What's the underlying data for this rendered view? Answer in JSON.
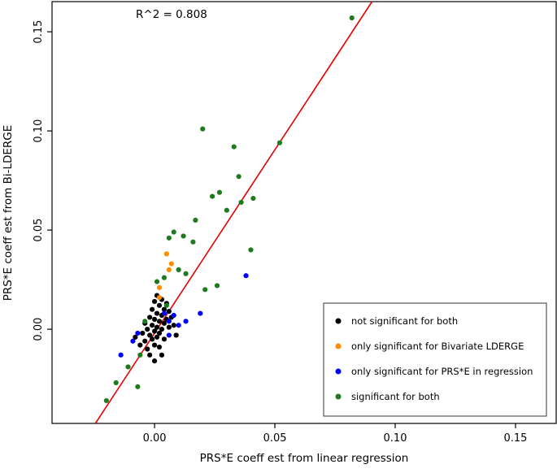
{
  "chart_data": {
    "type": "scatter",
    "title": "",
    "annotation_text": "R^2 = 0.808",
    "xlabel": "PRS*E coeff est from linear regression",
    "ylabel": "PRS*E coeff est from Bi-LDERGE",
    "xlim": [
      -0.0426,
      0.1669
    ],
    "ylim": [
      -0.0475,
      0.1652
    ],
    "xticks": [
      0.0,
      0.05,
      0.1,
      0.15
    ],
    "yticks": [
      0.0,
      0.05,
      0.1,
      0.15
    ],
    "grid": false,
    "legend_position": "bottom-right",
    "regression_line": {
      "slope": 1.85,
      "intercept": -0.002,
      "color": "#e60000"
    },
    "series": [
      {
        "name": "not significant for both",
        "color": "#000000",
        "points": [
          [
            -0.008,
            -0.004
          ],
          [
            -0.006,
            -0.008
          ],
          [
            -0.005,
            -0.002
          ],
          [
            -0.004,
            0.003
          ],
          [
            -0.004,
            -0.006
          ],
          [
            -0.003,
            0.0
          ],
          [
            -0.003,
            -0.01
          ],
          [
            -0.002,
            0.006
          ],
          [
            -0.002,
            -0.003
          ],
          [
            -0.002,
            -0.013
          ],
          [
            -0.001,
            0.01
          ],
          [
            -0.001,
            0.002
          ],
          [
            -0.001,
            -0.005
          ],
          [
            0.0,
            0.014
          ],
          [
            0.0,
            0.005
          ],
          [
            0.0,
            -0.001
          ],
          [
            0.0,
            -0.008
          ],
          [
            0.001,
            0.017
          ],
          [
            0.001,
            0.008
          ],
          [
            0.001,
            0.001
          ],
          [
            0.001,
            -0.004
          ],
          [
            0.002,
            0.012
          ],
          [
            0.002,
            0.004
          ],
          [
            0.002,
            -0.002
          ],
          [
            0.002,
            -0.009
          ],
          [
            0.003,
            0.015
          ],
          [
            0.003,
            0.007
          ],
          [
            0.003,
            0.0
          ],
          [
            0.004,
            0.01
          ],
          [
            0.004,
            0.003
          ],
          [
            0.004,
            -0.005
          ],
          [
            0.005,
            0.013
          ],
          [
            0.005,
            0.005
          ],
          [
            0.006,
            0.009
          ],
          [
            0.006,
            0.001
          ],
          [
            0.007,
            0.006
          ],
          [
            0.008,
            0.002
          ],
          [
            0.009,
            -0.003
          ],
          [
            0.003,
            -0.013
          ],
          [
            0.0,
            -0.016
          ]
        ]
      },
      {
        "name": "only significant for Bivariate LDERGE",
        "color": "#ff8c00",
        "points": [
          [
            0.005,
            0.038
          ],
          [
            0.007,
            0.033
          ],
          [
            0.006,
            0.03
          ],
          [
            0.002,
            0.021
          ],
          [
            0.002,
            0.016
          ]
        ]
      },
      {
        "name": "only significant for PRS*E in regression",
        "color": "#0000ff",
        "points": [
          [
            -0.014,
            -0.013
          ],
          [
            -0.009,
            -0.006
          ],
          [
            -0.007,
            -0.002
          ],
          [
            0.004,
            0.008
          ],
          [
            0.006,
            0.004
          ],
          [
            0.008,
            0.007
          ],
          [
            0.01,
            0.002
          ],
          [
            0.013,
            0.004
          ],
          [
            0.019,
            0.008
          ],
          [
            0.038,
            0.027
          ],
          [
            0.006,
            -0.003
          ]
        ]
      },
      {
        "name": "significant for both",
        "color": "#1f7a1f",
        "points": [
          [
            -0.02,
            -0.036
          ],
          [
            -0.016,
            -0.027
          ],
          [
            -0.011,
            -0.019
          ],
          [
            -0.007,
            -0.029
          ],
          [
            -0.006,
            -0.013
          ],
          [
            -0.004,
            0.004
          ],
          [
            0.001,
            0.024
          ],
          [
            0.004,
            0.026
          ],
          [
            0.005,
            0.012
          ],
          [
            0.006,
            0.046
          ],
          [
            0.008,
            0.049
          ],
          [
            0.01,
            0.03
          ],
          [
            0.012,
            0.047
          ],
          [
            0.013,
            0.028
          ],
          [
            0.016,
            0.044
          ],
          [
            0.017,
            0.055
          ],
          [
            0.02,
            0.101
          ],
          [
            0.021,
            0.02
          ],
          [
            0.024,
            0.067
          ],
          [
            0.026,
            0.022
          ],
          [
            0.027,
            0.069
          ],
          [
            0.03,
            0.06
          ],
          [
            0.033,
            0.092
          ],
          [
            0.035,
            0.077
          ],
          [
            0.036,
            0.064
          ],
          [
            0.04,
            0.04
          ],
          [
            0.041,
            0.066
          ],
          [
            0.052,
            0.094
          ],
          [
            0.082,
            0.157
          ]
        ]
      }
    ]
  }
}
